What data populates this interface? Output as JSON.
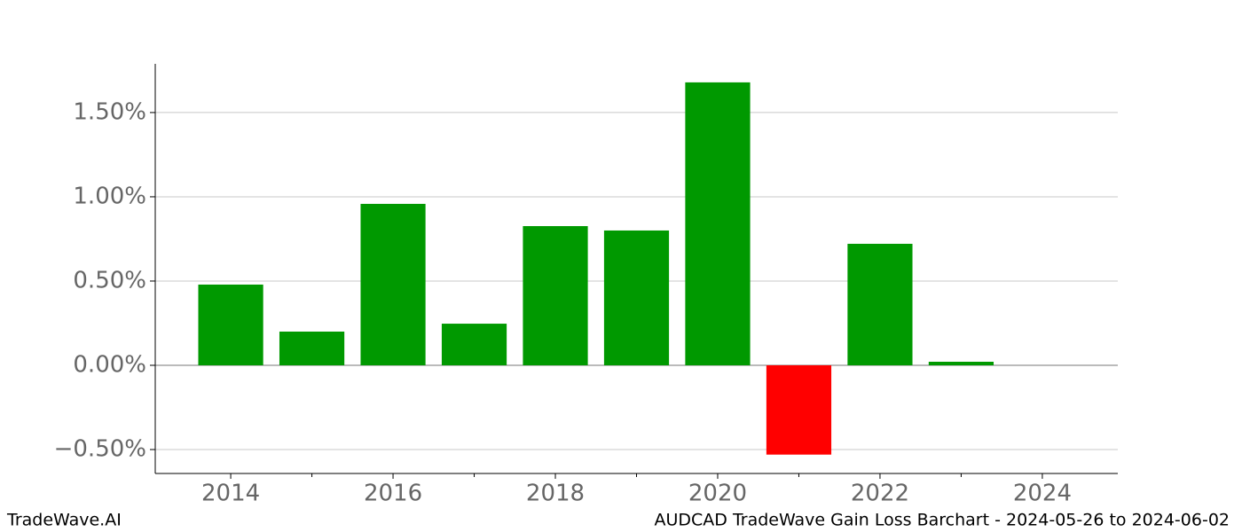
{
  "chart_data": {
    "type": "bar",
    "title": "AUDCAD TradeWave Gain Loss Barchart - 2024-05-26 to 2024-06-02",
    "source": "TradeWave.AI",
    "x": [
      2014,
      2015,
      2016,
      2017,
      2018,
      2019,
      2020,
      2021,
      2022,
      2023
    ],
    "values": [
      0.479,
      0.2,
      0.958,
      0.247,
      0.826,
      0.8,
      1.679,
      -0.53,
      0.721,
      0.021
    ],
    "positive_color": "#009900",
    "negative_color": "#ff0000",
    "xlim": [
      2013.07,
      2024.93
    ],
    "xticks": [
      2014,
      2016,
      2018,
      2020,
      2022,
      2024
    ],
    "xminor_ticks": [
      2015,
      2017,
      2019,
      2021,
      2023
    ],
    "ylim": [
      -0.642,
      1.789
    ],
    "yticks": [
      {
        "value": -0.5,
        "label": "−0.50%"
      },
      {
        "value": 0,
        "label": "0.00%"
      },
      {
        "value": 0.5,
        "label": "0.50%"
      },
      {
        "value": 1,
        "label": "1.00%"
      },
      {
        "value": 1.5,
        "label": "1.50%"
      }
    ],
    "grid": true
  }
}
